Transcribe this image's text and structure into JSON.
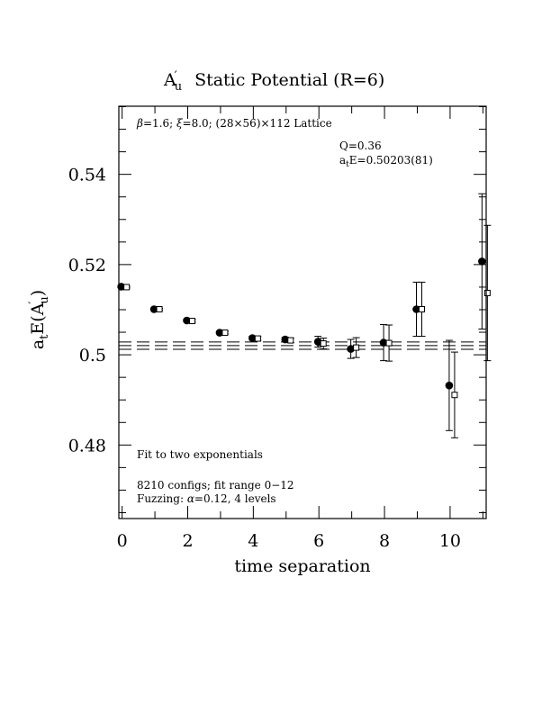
{
  "chart_data": {
    "type": "scatter",
    "title_main": "A",
    "title_prime": "′",
    "title_sub": "u",
    "title_rest": "Static Potential (R=6)",
    "xlabel": "time separation",
    "ylabel_prefix": "a",
    "ylabel_prefix_sub": "t",
    "ylabel_mid": "E(A",
    "ylabel_prime": "′",
    "ylabel_sub": "u",
    "ylabel_suffix": ")",
    "xlim": [
      -0.1,
      11.1
    ],
    "ylim": [
      0.4637,
      0.5551
    ],
    "x_ticks": [
      0,
      2,
      4,
      6,
      8,
      10
    ],
    "x_tick_labels": [
      "0",
      "2",
      "4",
      "6",
      "8",
      "10"
    ],
    "x_minor_step": 1,
    "y_ticks": [
      0.48,
      0.5,
      0.52,
      0.54
    ],
    "y_tick_labels": [
      "0.48",
      "0.5",
      "0.52",
      "0.54"
    ],
    "y_minor_step": 0.005,
    "annotations": {
      "lattice_beta": "β",
      "lattice_xi": "ξ",
      "lattice_rest_1": "=1.6; ",
      "lattice_rest_2": "=8.0; (28×56)×112 Lattice",
      "q_value": "Q=0.36",
      "energy_prefix": "a",
      "energy_prefix_sub": "t",
      "energy_rest": "E=0.50203(81)",
      "fit_note": "Fit to two exponentials",
      "configs_note": "8210 configs; fit range 0−12",
      "fuzz_prefix": "Fuzzing: ",
      "fuzz_alpha": "α",
      "fuzz_rest": "=0.12, 4 levels"
    },
    "fit": {
      "central": 0.50203,
      "lower": 0.50122,
      "upper": 0.50284,
      "x_range": [
        -0.1,
        11.1
      ]
    },
    "series": [
      {
        "marker": "filled-circle",
        "points": [
          {
            "x": 0,
            "y": 0.5151,
            "err": 0.0002
          },
          {
            "x": 1,
            "y": 0.5101,
            "err": 0.0002
          },
          {
            "x": 2,
            "y": 0.5076,
            "err": 0.0003
          },
          {
            "x": 3,
            "y": 0.5049,
            "err": 0.0003
          },
          {
            "x": 4,
            "y": 0.5037,
            "err": 0.0004
          },
          {
            "x": 5,
            "y": 0.5034,
            "err": 0.0005
          },
          {
            "x": 6,
            "y": 0.5029,
            "err": 0.0012
          },
          {
            "x": 7,
            "y": 0.5013,
            "err": 0.0021
          },
          {
            "x": 8,
            "y": 0.5027,
            "err": 0.004
          },
          {
            "x": 9,
            "y": 0.5101,
            "err": 0.006
          },
          {
            "x": 10,
            "y": 0.4932,
            "err": 0.01
          },
          {
            "x": 11,
            "y": 0.5207,
            "err": 0.015
          }
        ]
      },
      {
        "marker": "open-square",
        "points": [
          {
            "x": 0,
            "y": 0.515,
            "err": 0.0002
          },
          {
            "x": 1,
            "y": 0.5101,
            "err": 0.0002
          },
          {
            "x": 2,
            "y": 0.5075,
            "err": 0.0003
          },
          {
            "x": 3,
            "y": 0.5049,
            "err": 0.0003
          },
          {
            "x": 4,
            "y": 0.5036,
            "err": 0.0004
          },
          {
            "x": 5,
            "y": 0.5032,
            "err": 0.0005
          },
          {
            "x": 6,
            "y": 0.5025,
            "err": 0.0012
          },
          {
            "x": 7,
            "y": 0.5016,
            "err": 0.0022
          },
          {
            "x": 8,
            "y": 0.5026,
            "err": 0.004
          },
          {
            "x": 9,
            "y": 0.5101,
            "err": 0.006
          },
          {
            "x": 10,
            "y": 0.4911,
            "err": 0.0095
          },
          {
            "x": 11,
            "y": 0.5137,
            "err": 0.015
          }
        ]
      }
    ]
  }
}
